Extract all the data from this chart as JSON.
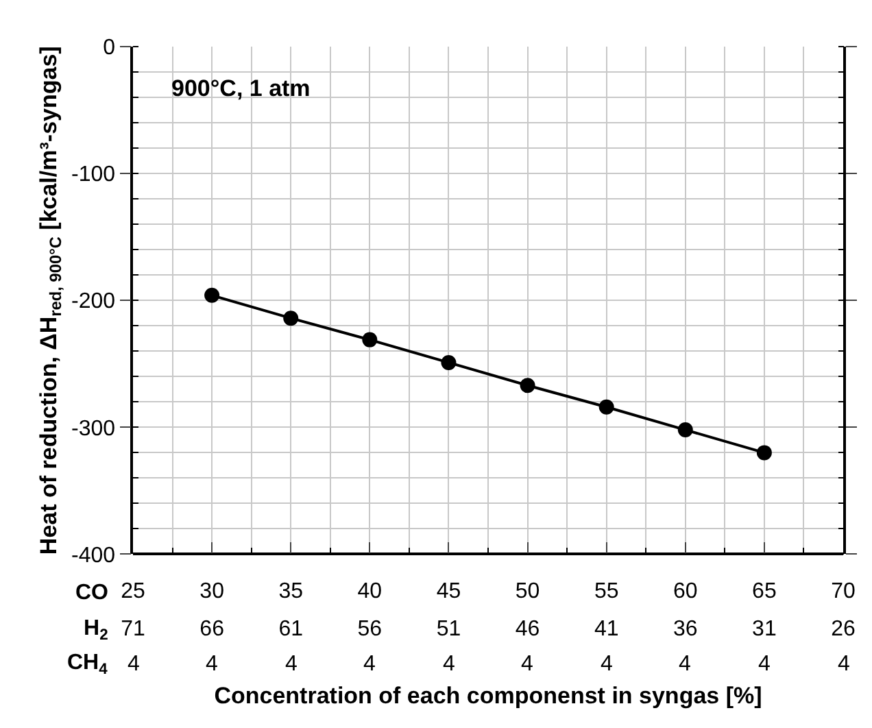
{
  "chart_data": {
    "type": "line",
    "xlabel": "Concentration of each componenst in syngas [%]",
    "ylabel": "Heat of reduction, ΔH$_{red, 900°C}$ [kcal/m³-syngas]",
    "annotations": [
      "900°C, 1 atm",
      "CO",
      "H$_{2}$",
      "CH$_{4}$",
      "4",
      "4",
      "4",
      "4",
      "4",
      "4",
      "4",
      "4",
      "4",
      "4"
    ],
    "x": [
      30,
      35,
      40,
      45,
      50,
      55,
      60,
      65
    ],
    "series": [
      {
        "color": "#000000",
        "values": [
          -196,
          -214,
          -231,
          -249,
          -267,
          -284,
          -302,
          -320
        ]
      }
    ],
    "xlim": [
      25,
      70
    ],
    "xticks": [
      25,
      30,
      35,
      40,
      45,
      50,
      55,
      60,
      65,
      70
    ],
    "x2lim": [
      71,
      26
    ],
    "x2ticks": [
      71,
      66,
      61,
      56,
      51,
      46,
      41,
      36,
      31,
      26
    ],
    "ylim": [
      -400,
      0
    ],
    "yticks": [
      -400,
      -300,
      -200,
      -100,
      0
    ],
    "grid": true,
    "marker": "circle",
    "line_style": "solid"
  }
}
